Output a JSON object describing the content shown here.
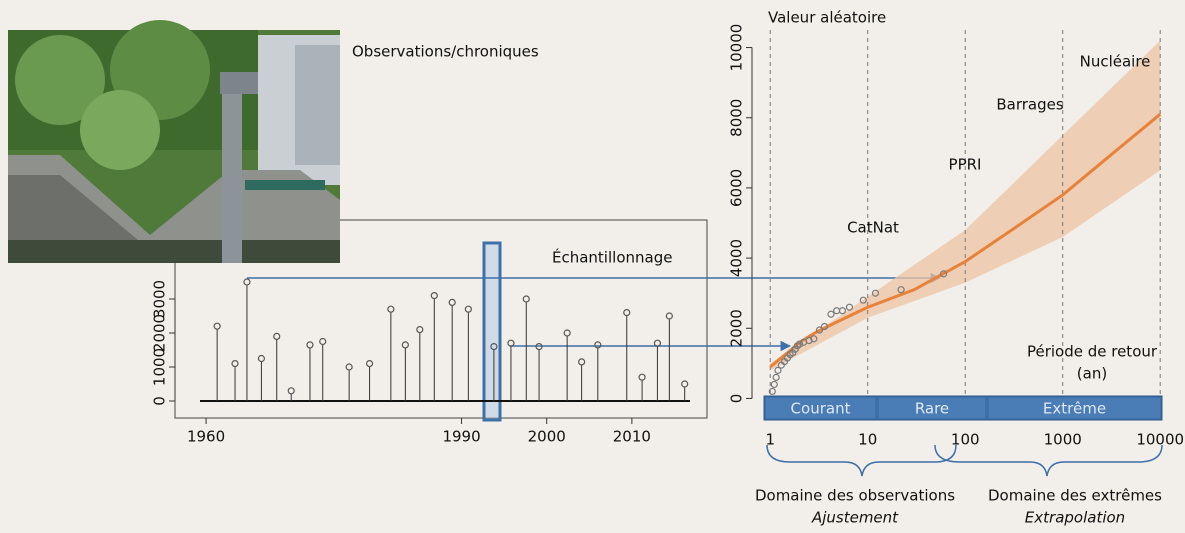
{
  "labels": {
    "observations": "Observations/chroniques",
    "sampling": "Échantillonnage",
    "domain_obs": "Domaine des observations",
    "domain_obs_sub": "Ajustement",
    "domain_ext": "Domaine des extrêmes",
    "domain_ext_sub": "Extrapolation"
  },
  "chart_data": [
    {
      "type": "scatter",
      "color": "#555555",
      "x": [
        1961.3,
        1963.4,
        1964.8,
        1966.5,
        1968.3,
        1970,
        1972.2,
        1973.7,
        1976.8,
        1979.2,
        1981.7,
        1983.4,
        1985.1,
        1986.8,
        1988.9,
        1990.8,
        1993.8,
        1995.8,
        1997.6,
        1999.1,
        2002.4,
        2004.1,
        2006,
        2009.4,
        2011.2,
        2013,
        2014.4,
        2016.2
      ],
      "values": [
        2200,
        1100,
        3500,
        1250,
        1900,
        300,
        1650,
        1750,
        1000,
        1100,
        2700,
        1650,
        2100,
        3100,
        2900,
        2700,
        1600,
        1700,
        3000,
        1600,
        2000,
        1150,
        1650,
        2600,
        700,
        1700,
        2500,
        500
      ],
      "xlim": [
        1956,
        2018
      ],
      "xticks": [
        1960,
        1990,
        2000,
        2010
      ],
      "ylim": [
        -500,
        4000
      ],
      "yticks": [
        0,
        1000,
        2000,
        3000
      ]
    },
    {
      "type": "line",
      "y_label": "Valeur aléatoire",
      "x_label": "Période de retour",
      "x_unit": "(an)",
      "log_x": true,
      "grid": true,
      "xlim": [
        0.65,
        12600
      ],
      "xticks": [
        1,
        10,
        100,
        1000,
        10000
      ],
      "ylim": [
        -500,
        10500
      ],
      "yticks": [
        0,
        2000,
        4000,
        6000,
        8000,
        10000
      ],
      "points": {
        "color": "#7a7a7a",
        "x": [
          1.05,
          1.1,
          1.15,
          1.2,
          1.3,
          1.4,
          1.5,
          1.6,
          1.7,
          1.8,
          1.9,
          2.0,
          2.2,
          2.5,
          2.8,
          3.2,
          3.6,
          4.2,
          4.8,
          5.5,
          6.5,
          9,
          12,
          22,
          60
        ],
        "values": [
          200,
          400,
          600,
          800,
          950,
          1050,
          1150,
          1250,
          1300,
          1400,
          1500,
          1550,
          1600,
          1650,
          1700,
          1950,
          2050,
          2400,
          2500,
          2500,
          2600,
          2800,
          3000,
          3100,
          3550
        ]
      },
      "fit": {
        "color": "#e8823a",
        "x": [
          1,
          1.5,
          2,
          3,
          5,
          10,
          30,
          100,
          300,
          1000,
          3000,
          10000
        ],
        "values": [
          900,
          1300,
          1600,
          1900,
          2200,
          2600,
          3100,
          3900,
          4800,
          5800,
          6900,
          8100
        ]
      },
      "band": {
        "color": "#ecc3a2",
        "x": [
          1,
          10,
          100,
          1000,
          10000
        ],
        "lower": [
          800,
          2300,
          3300,
          4600,
          6500
        ],
        "upper": [
          1000,
          2900,
          4800,
          7500,
          10200
        ]
      },
      "annotations": [
        "CatNat",
        "PPRI",
        "Barrages",
        "Nucléaire"
      ],
      "classes": [
        "Courant",
        "Rare",
        "Extrême"
      ]
    }
  ]
}
